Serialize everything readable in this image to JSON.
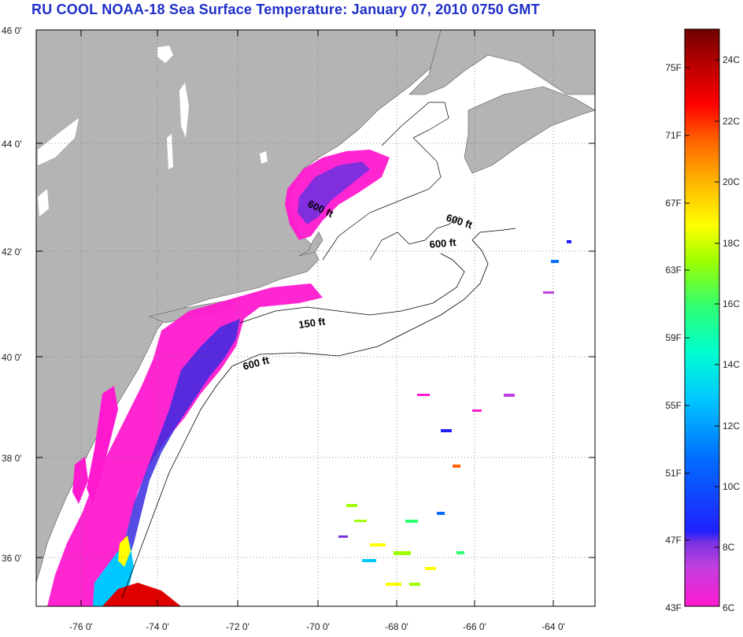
{
  "title": "RU COOL  NOAA-18  Sea Surface Temperature:  January 07, 2010 0750 GMT",
  "map": {
    "lat_labels": [
      "46 0'",
      "44 0'",
      "42 0'",
      "40 0'",
      "38 0'",
      "36 0'"
    ],
    "lon_labels": [
      "-76 0'",
      "-74 0'",
      "-72 0'",
      "-70 0'",
      "-68 0'",
      "-66 0'",
      "-64 0'"
    ],
    "lat_range": [
      35,
      46
    ],
    "lon_range": [
      -77,
      -62.3
    ],
    "isobath_labels": [
      "600 ft",
      "600 ft",
      "600 ft",
      "150 ft",
      "600 ft"
    ]
  },
  "colorbar": {
    "fahrenheit_labels": [
      "75F",
      "71F",
      "67F",
      "63F",
      "59F",
      "55F",
      "51F",
      "47F",
      "43F"
    ],
    "celsius_labels": [
      "24C",
      "22C",
      "20C",
      "18C",
      "16C",
      "14C",
      "12C",
      "10C",
      "8C",
      "6C"
    ],
    "range_c": [
      6,
      25.5
    ],
    "colors": [
      "#ff1ad0",
      "#c040e0",
      "#7a33e0",
      "#2020ff",
      "#0070ff",
      "#00c8ff",
      "#00ffd0",
      "#30ff70",
      "#a0ff00",
      "#ffff00",
      "#ffb000",
      "#ff6000",
      "#ff0000",
      "#b80000",
      "#700000"
    ]
  },
  "colors": {
    "land": "#b4b4b4",
    "ocean": "#ffffff",
    "title": "#1f2fc8"
  }
}
